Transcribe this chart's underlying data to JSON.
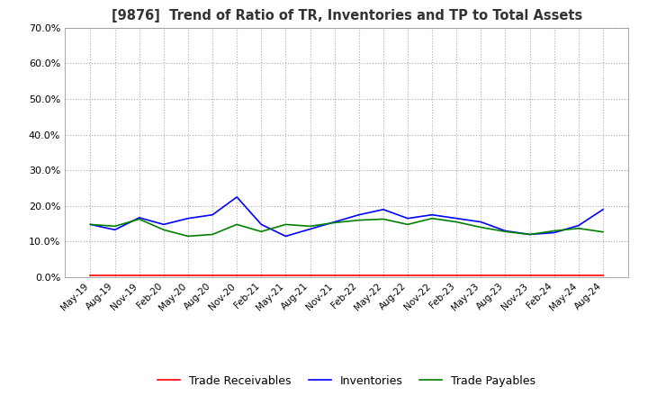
{
  "title": "[9876]  Trend of Ratio of TR, Inventories and TP to Total Assets",
  "x_labels": [
    "May-19",
    "Aug-19",
    "Nov-19",
    "Feb-20",
    "May-20",
    "Aug-20",
    "Nov-20",
    "Feb-21",
    "May-21",
    "Aug-21",
    "Nov-21",
    "Feb-22",
    "May-22",
    "Aug-22",
    "Nov-22",
    "Feb-23",
    "May-23",
    "Aug-23",
    "Nov-23",
    "Feb-24",
    "May-24",
    "Aug-24"
  ],
  "trade_receivables": [
    0.005,
    0.005,
    0.005,
    0.005,
    0.005,
    0.005,
    0.005,
    0.005,
    0.005,
    0.005,
    0.005,
    0.005,
    0.005,
    0.005,
    0.005,
    0.005,
    0.005,
    0.005,
    0.005,
    0.005,
    0.005,
    0.005
  ],
  "inventories": [
    0.148,
    0.133,
    0.167,
    0.148,
    0.165,
    0.175,
    0.225,
    0.148,
    0.115,
    0.135,
    0.155,
    0.175,
    0.19,
    0.165,
    0.175,
    0.165,
    0.155,
    0.13,
    0.12,
    0.125,
    0.145,
    0.19
  ],
  "trade_payables": [
    0.148,
    0.143,
    0.163,
    0.133,
    0.115,
    0.12,
    0.148,
    0.128,
    0.148,
    0.143,
    0.153,
    0.16,
    0.163,
    0.148,
    0.165,
    0.155,
    0.14,
    0.128,
    0.12,
    0.13,
    0.137,
    0.127
  ],
  "ylim": [
    0.0,
    0.7
  ],
  "yticks": [
    0.0,
    0.1,
    0.2,
    0.3,
    0.4,
    0.5,
    0.6,
    0.7
  ],
  "colors": {
    "trade_receivables": "#ff0000",
    "inventories": "#0000ff",
    "trade_payables": "#008000"
  },
  "legend_labels": [
    "Trade Receivables",
    "Inventories",
    "Trade Payables"
  ],
  "background_color": "#ffffff",
  "grid_color": "#aaaaaa"
}
